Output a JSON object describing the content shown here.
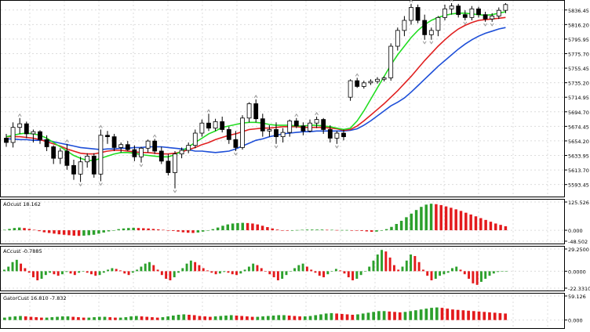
{
  "chart_data": [
    {
      "type": "candlestick",
      "panel": "price",
      "ylim": [
        5580,
        5846
      ],
      "yticks": [
        "5836.45",
        "5816.20",
        "5795.95",
        "5775.70",
        "5755.45",
        "5735.20",
        "5714.95",
        "5694.70",
        "5674.45",
        "5654.20",
        "5633.95",
        "5613.70",
        "5593.45"
      ],
      "ytick_values": [
        5836.45,
        5816.2,
        5795.95,
        5775.7,
        5755.45,
        5735.2,
        5714.95,
        5694.7,
        5674.45,
        5654.2,
        5633.95,
        5613.7,
        5593.45
      ],
      "grid": true,
      "series": [
        {
          "name": "",
          "kind": "ohlc",
          "color": "#000000",
          "values": [
            {
              "o": 5658,
              "h": 5664,
              "l": 5646,
              "c": 5652
            },
            {
              "o": 5652,
              "h": 5680,
              "l": 5645,
              "c": 5673
            },
            {
              "o": 5673,
              "h": 5686,
              "l": 5664,
              "c": 5678
            },
            {
              "o": 5678,
              "h": 5681,
              "l": 5658,
              "c": 5664
            },
            {
              "o": 5664,
              "h": 5670,
              "l": 5652,
              "c": 5667
            },
            {
              "o": 5667,
              "h": 5669,
              "l": 5650,
              "c": 5656
            },
            {
              "o": 5656,
              "h": 5662,
              "l": 5640,
              "c": 5646
            },
            {
              "o": 5646,
              "h": 5648,
              "l": 5622,
              "c": 5630
            },
            {
              "o": 5630,
              "h": 5644,
              "l": 5622,
              "c": 5640
            },
            {
              "o": 5640,
              "h": 5650,
              "l": 5614,
              "c": 5620
            },
            {
              "o": 5620,
              "h": 5628,
              "l": 5600,
              "c": 5608
            },
            {
              "o": 5608,
              "h": 5632,
              "l": 5597,
              "c": 5625
            },
            {
              "o": 5625,
              "h": 5637,
              "l": 5617,
              "c": 5633
            },
            {
              "o": 5633,
              "h": 5637,
              "l": 5603,
              "c": 5608
            },
            {
              "o": 5608,
              "h": 5670,
              "l": 5598,
              "c": 5662
            },
            {
              "o": 5662,
              "h": 5668,
              "l": 5650,
              "c": 5660
            },
            {
              "o": 5660,
              "h": 5664,
              "l": 5640,
              "c": 5645
            },
            {
              "o": 5645,
              "h": 5652,
              "l": 5638,
              "c": 5649
            },
            {
              "o": 5649,
              "h": 5654,
              "l": 5640,
              "c": 5642
            },
            {
              "o": 5642,
              "h": 5648,
              "l": 5626,
              "c": 5632
            },
            {
              "o": 5632,
              "h": 5646,
              "l": 5624,
              "c": 5644
            },
            {
              "o": 5644,
              "h": 5656,
              "l": 5638,
              "c": 5654
            },
            {
              "o": 5654,
              "h": 5657,
              "l": 5636,
              "c": 5640
            },
            {
              "o": 5640,
              "h": 5646,
              "l": 5622,
              "c": 5626
            },
            {
              "o": 5626,
              "h": 5636,
              "l": 5606,
              "c": 5610
            },
            {
              "o": 5610,
              "h": 5640,
              "l": 5588,
              "c": 5636
            },
            {
              "o": 5636,
              "h": 5645,
              "l": 5630,
              "c": 5641
            },
            {
              "o": 5641,
              "h": 5652,
              "l": 5637,
              "c": 5648
            },
            {
              "o": 5648,
              "h": 5670,
              "l": 5644,
              "c": 5665
            },
            {
              "o": 5665,
              "h": 5684,
              "l": 5660,
              "c": 5679
            },
            {
              "o": 5679,
              "h": 5692,
              "l": 5668,
              "c": 5672
            },
            {
              "o": 5672,
              "h": 5685,
              "l": 5668,
              "c": 5681
            },
            {
              "o": 5681,
              "h": 5688,
              "l": 5666,
              "c": 5670
            },
            {
              "o": 5670,
              "h": 5674,
              "l": 5650,
              "c": 5656
            },
            {
              "o": 5656,
              "h": 5668,
              "l": 5640,
              "c": 5645
            },
            {
              "o": 5645,
              "h": 5690,
              "l": 5642,
              "c": 5686
            },
            {
              "o": 5686,
              "h": 5708,
              "l": 5680,
              "c": 5706
            },
            {
              "o": 5706,
              "h": 5712,
              "l": 5680,
              "c": 5685
            },
            {
              "o": 5685,
              "h": 5692,
              "l": 5660,
              "c": 5668
            },
            {
              "o": 5668,
              "h": 5676,
              "l": 5660,
              "c": 5670
            },
            {
              "o": 5670,
              "h": 5680,
              "l": 5650,
              "c": 5660
            },
            {
              "o": 5660,
              "h": 5672,
              "l": 5652,
              "c": 5666
            },
            {
              "o": 5666,
              "h": 5684,
              "l": 5660,
              "c": 5682
            },
            {
              "o": 5682,
              "h": 5686,
              "l": 5672,
              "c": 5675
            },
            {
              "o": 5675,
              "h": 5680,
              "l": 5662,
              "c": 5668
            },
            {
              "o": 5668,
              "h": 5684,
              "l": 5666,
              "c": 5679
            },
            {
              "o": 5679,
              "h": 5688,
              "l": 5672,
              "c": 5684
            },
            {
              "o": 5684,
              "h": 5686,
              "l": 5664,
              "c": 5670
            },
            {
              "o": 5670,
              "h": 5676,
              "l": 5652,
              "c": 5658
            },
            {
              "o": 5658,
              "h": 5668,
              "l": 5650,
              "c": 5665
            },
            {
              "o": 5665,
              "h": 5670,
              "l": 5655,
              "c": 5660
            },
            {
              "o": 5715,
              "h": 5740,
              "l": 5710,
              "c": 5738
            },
            {
              "o": 5738,
              "h": 5742,
              "l": 5728,
              "c": 5730
            },
            {
              "o": 5730,
              "h": 5738,
              "l": 5727,
              "c": 5735
            },
            {
              "o": 5735,
              "h": 5740,
              "l": 5732,
              "c": 5737
            },
            {
              "o": 5737,
              "h": 5743,
              "l": 5734,
              "c": 5740
            },
            {
              "o": 5740,
              "h": 5744,
              "l": 5737,
              "c": 5742
            },
            {
              "o": 5742,
              "h": 5790,
              "l": 5738,
              "c": 5786
            },
            {
              "o": 5786,
              "h": 5812,
              "l": 5780,
              "c": 5808
            },
            {
              "o": 5808,
              "h": 5828,
              "l": 5800,
              "c": 5822
            },
            {
              "o": 5822,
              "h": 5845,
              "l": 5816,
              "c": 5840
            },
            {
              "o": 5840,
              "h": 5844,
              "l": 5818,
              "c": 5822
            },
            {
              "o": 5822,
              "h": 5830,
              "l": 5795,
              "c": 5802
            },
            {
              "o": 5802,
              "h": 5812,
              "l": 5795,
              "c": 5808
            },
            {
              "o": 5808,
              "h": 5828,
              "l": 5800,
              "c": 5826
            },
            {
              "o": 5826,
              "h": 5844,
              "l": 5822,
              "c": 5838
            },
            {
              "o": 5838,
              "h": 5846,
              "l": 5830,
              "c": 5842
            },
            {
              "o": 5842,
              "h": 5845,
              "l": 5826,
              "c": 5830
            },
            {
              "o": 5830,
              "h": 5836,
              "l": 5822,
              "c": 5826
            },
            {
              "o": 5826,
              "h": 5842,
              "l": 5822,
              "c": 5838
            },
            {
              "o": 5838,
              "h": 5841,
              "l": 5826,
              "c": 5830
            },
            {
              "o": 5830,
              "h": 5834,
              "l": 5820,
              "c": 5824
            },
            {
              "o": 5824,
              "h": 5832,
              "l": 5820,
              "c": 5828
            },
            {
              "o": 5828,
              "h": 5840,
              "l": 5824,
              "c": 5836
            },
            {
              "o": 5836,
              "h": 5846,
              "l": 5832,
              "c": 5844
            }
          ]
        },
        {
          "name": "",
          "kind": "line",
          "color": "#1e4fd8",
          "smooth": 26,
          "values": [
            5657,
            5657,
            5656,
            5656,
            5655,
            5655,
            5655,
            5653,
            5651,
            5649,
            5647,
            5645,
            5644,
            5643,
            5642,
            5643,
            5643,
            5644,
            5644,
            5645,
            5645,
            5646,
            5646,
            5646,
            5645,
            5644,
            5643,
            5642,
            5640,
            5640,
            5639,
            5638,
            5639,
            5640,
            5643,
            5647,
            5651,
            5655,
            5657,
            5660,
            5662,
            5664,
            5665,
            5666,
            5667,
            5667,
            5668,
            5668,
            5668,
            5668,
            5668,
            5669,
            5671,
            5676,
            5682,
            5689,
            5696,
            5703,
            5708,
            5714,
            5722,
            5731,
            5740,
            5749,
            5758,
            5766,
            5774,
            5782,
            5789,
            5795,
            5800,
            5804,
            5807,
            5810,
            5812
          ]
        },
        {
          "name": "",
          "kind": "line",
          "color": "#e02020",
          "smooth": 15,
          "values": [
            5660,
            5660,
            5660,
            5659,
            5658,
            5656,
            5653,
            5650,
            5647,
            5643,
            5640,
            5637,
            5636,
            5636,
            5638,
            5640,
            5641,
            5641,
            5640,
            5639,
            5638,
            5638,
            5637,
            5636,
            5636,
            5637,
            5639,
            5642,
            5645,
            5649,
            5652,
            5656,
            5659,
            5662,
            5664,
            5667,
            5670,
            5671,
            5672,
            5672,
            5673,
            5674,
            5674,
            5674,
            5673,
            5673,
            5673,
            5673,
            5672,
            5671,
            5669,
            5670,
            5675,
            5682,
            5690,
            5698,
            5706,
            5715,
            5724,
            5734,
            5744,
            5755,
            5766,
            5776,
            5786,
            5795,
            5803,
            5810,
            5815,
            5819,
            5822,
            5823,
            5824,
            5825,
            5826
          ]
        },
        {
          "name": "",
          "kind": "line",
          "color": "#22dd22",
          "smooth": 9,
          "values": [
            5660,
            5662,
            5664,
            5665,
            5664,
            5662,
            5658,
            5652,
            5646,
            5640,
            5634,
            5630,
            5627,
            5627,
            5630,
            5633,
            5636,
            5638,
            5638,
            5637,
            5635,
            5634,
            5633,
            5632,
            5632,
            5635,
            5640,
            5646,
            5652,
            5658,
            5664,
            5668,
            5673,
            5675,
            5677,
            5679,
            5680,
            5680,
            5679,
            5677,
            5676,
            5676,
            5676,
            5675,
            5675,
            5676,
            5676,
            5675,
            5674,
            5672,
            5670,
            5672,
            5682,
            5696,
            5712,
            5728,
            5744,
            5760,
            5774,
            5786,
            5798,
            5808,
            5816,
            5822,
            5826,
            5829,
            5831,
            5832,
            5832,
            5831,
            5830,
            5829,
            5830,
            5832,
            5834
          ]
        }
      ],
      "arrow_markers": {
        "color": "#999999",
        "note": "fractal markers"
      }
    },
    {
      "type": "bar",
      "panel": "oscillator-1",
      "label": "AOcust 18.162",
      "ylim": [
        -48.502,
        125.526
      ],
      "yticks": [
        "125.526",
        "0.000",
        "-48.502"
      ],
      "ytick_values": [
        125.526,
        0,
        -48.502
      ],
      "up_color": "#2ca02c",
      "down_color": "#e31a1c",
      "values": [
        2,
        6,
        10,
        12,
        10,
        6,
        2,
        -4,
        -9,
        -12,
        -15,
        -18,
        -20,
        -22,
        -24,
        -25,
        -24,
        -22,
        -20,
        -15,
        -10,
        -5,
        0,
        5,
        8,
        10,
        11,
        10,
        9,
        8,
        6,
        4,
        2,
        0,
        -3,
        -6,
        -9,
        -11,
        -12,
        -10,
        -6,
        0,
        5,
        12,
        20,
        26,
        30,
        32,
        33,
        32,
        30,
        26,
        20,
        14,
        8,
        3,
        -1,
        -2,
        -1,
        1,
        2,
        3,
        3,
        3,
        3,
        2,
        2,
        1,
        1,
        1,
        0,
        -1,
        -3,
        -5,
        -7,
        -6,
        -2,
        5,
        15,
        28,
        42,
        58,
        74,
        90,
        104,
        114,
        118,
        116,
        112,
        106,
        100,
        93,
        86,
        78,
        70,
        62,
        54,
        46,
        38,
        30,
        24,
        18
      ]
    },
    {
      "type": "bar",
      "panel": "oscillator-2",
      "label": "ACcust -0.7885",
      "ylim": [
        -22.331,
        29.25
      ],
      "yticks": [
        "29.2500",
        "0.0000",
        "-22.3310"
      ],
      "ytick_values": [
        29.25,
        0,
        -22.331
      ],
      "up_color": "#2ca02c",
      "down_color": "#e31a1c",
      "values": [
        2,
        6,
        12,
        15,
        10,
        4,
        -2,
        -8,
        -12,
        -10,
        -5,
        -2,
        -4,
        -6,
        -4,
        -1,
        -3,
        -5,
        -2,
        0,
        -2,
        -4,
        -6,
        -5,
        -2,
        2,
        4,
        3,
        1,
        -3,
        -5,
        -2,
        2,
        6,
        10,
        12,
        8,
        2,
        -5,
        -10,
        -12,
        -8,
        -2,
        4,
        10,
        14,
        12,
        8,
        4,
        1,
        -2,
        -4,
        -3,
        -1,
        -2,
        -4,
        -5,
        -3,
        2,
        6,
        10,
        8,
        4,
        0,
        -4,
        -8,
        -12,
        -10,
        -5,
        0,
        4,
        8,
        10,
        6,
        2,
        -2,
        -6,
        -8,
        -4,
        0,
        3,
        1,
        -3,
        -8,
        -12,
        -10,
        -5,
        0,
        6,
        14,
        22,
        28,
        26,
        18,
        8,
        2,
        6,
        14,
        22,
        20,
        12,
        2,
        -6,
        -12,
        -10,
        -6,
        -4,
        -2,
        4,
        6,
        2,
        -4,
        -10,
        -16,
        -18,
        -14,
        -10,
        -6,
        -3,
        -1,
        0,
        0
      ]
    },
    {
      "type": "bar",
      "panel": "oscillator-3",
      "label": "GatorCust 16.810 -7.832",
      "ylim": [
        -14,
        59.126
      ],
      "yticks": [
        "59.126",
        "0.000"
      ],
      "ytick_values": [
        59.126,
        0
      ],
      "up_color": "#2ca02c",
      "down_color": "#e31a1c",
      "values": [
        6,
        8,
        9,
        10,
        9,
        8,
        7,
        6,
        6,
        7,
        8,
        9,
        9,
        8,
        7,
        6,
        6,
        7,
        8,
        8,
        7,
        6,
        6,
        7,
        9,
        10,
        9,
        8,
        7,
        6,
        7,
        9,
        11,
        13,
        14,
        13,
        12,
        10,
        9,
        8,
        9,
        10,
        11,
        12,
        11,
        10,
        9,
        8,
        8,
        9,
        10,
        11,
        12,
        12,
        11,
        10,
        9,
        9,
        10,
        12,
        14,
        16,
        17,
        16,
        15,
        14,
        13,
        14,
        16,
        18,
        20,
        22,
        22,
        21,
        20,
        19,
        20,
        22,
        24,
        26,
        28,
        30,
        31,
        30,
        28,
        26,
        25,
        24,
        23,
        22,
        21,
        20,
        19,
        18,
        17,
        16
      ]
    }
  ]
}
